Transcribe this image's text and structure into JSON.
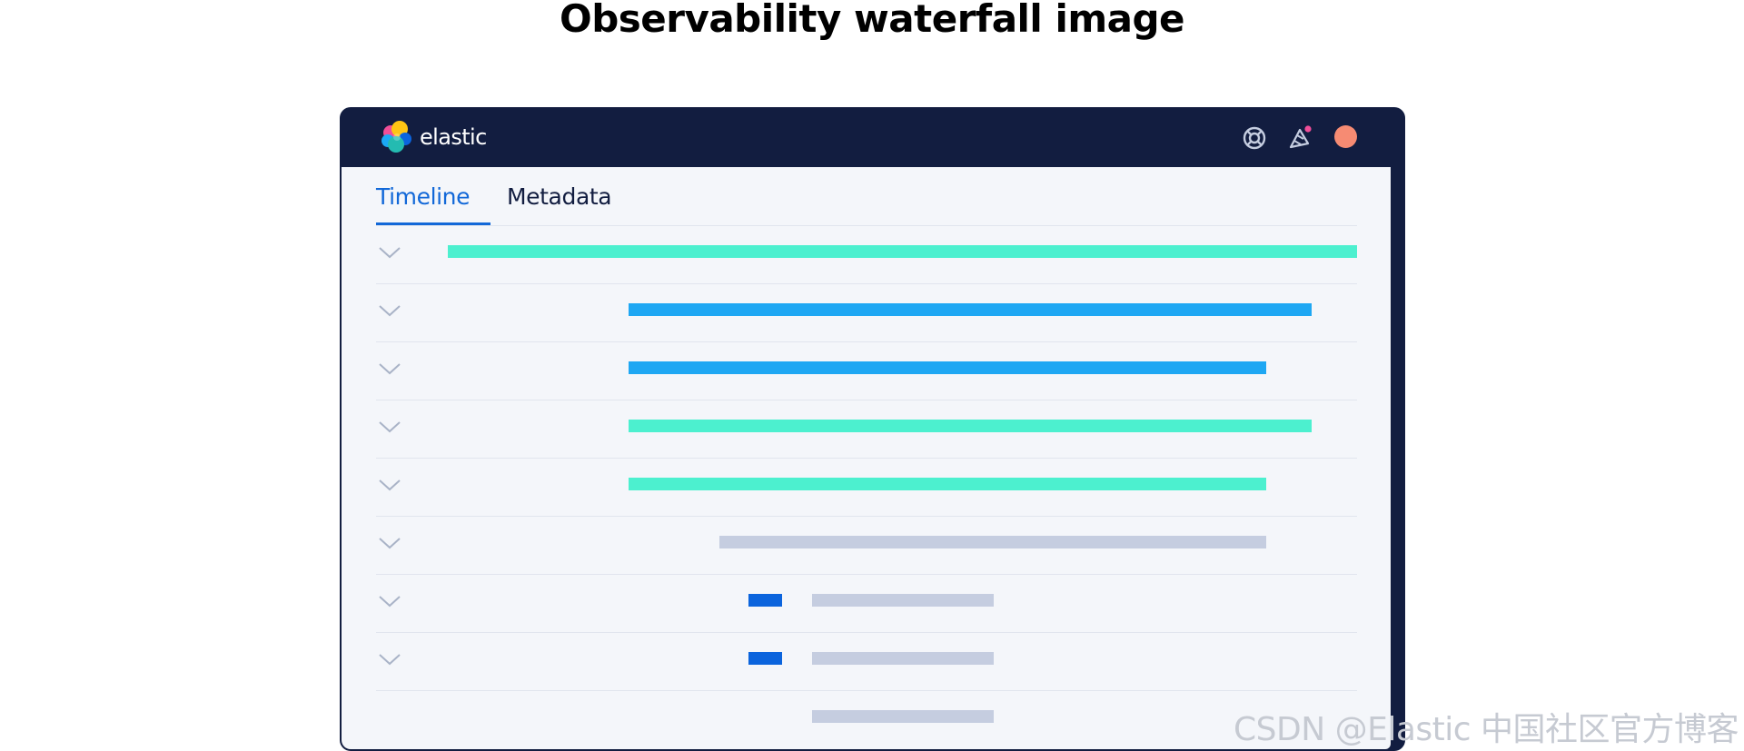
{
  "page": {
    "title": "Observability waterfall image"
  },
  "app": {
    "logo_text": "elastic",
    "logo_icon": "elastic-logo-icon",
    "header_icons": [
      "help-lifebuoy-icon",
      "news-feed-megaphone-icon",
      "user-avatar"
    ]
  },
  "tabs": [
    {
      "label": "Timeline",
      "selected": true
    },
    {
      "label": "Metadata",
      "selected": false
    }
  ],
  "timeline": {
    "rows": [
      {
        "expand_icon": "chevron-down-icon",
        "spans": [
          {
            "start": 0.073,
            "end": 1.0,
            "color": "#4cf0cf"
          }
        ]
      },
      {
        "expand_icon": "chevron-down-icon",
        "spans": [
          {
            "start": 0.257,
            "end": 0.954,
            "color": "#1ea7f3"
          }
        ]
      },
      {
        "expand_icon": "chevron-down-icon",
        "spans": [
          {
            "start": 0.257,
            "end": 0.907,
            "color": "#1ea7f3"
          }
        ]
      },
      {
        "expand_icon": "chevron-down-icon",
        "spans": [
          {
            "start": 0.257,
            "end": 0.954,
            "color": "#4cf0cf"
          }
        ]
      },
      {
        "expand_icon": "chevron-down-icon",
        "spans": [
          {
            "start": 0.257,
            "end": 0.907,
            "color": "#4cf0cf"
          }
        ]
      },
      {
        "expand_icon": "chevron-down-icon",
        "spans": [
          {
            "start": 0.35,
            "end": 0.907,
            "color": "#c5cde0"
          }
        ]
      },
      {
        "expand_icon": "chevron-down-icon",
        "spans": [
          {
            "start": 0.38,
            "end": 0.414,
            "color": "#0b64dd"
          },
          {
            "start": 0.444,
            "end": 0.63,
            "color": "#c5cde0"
          }
        ]
      },
      {
        "expand_icon": "chevron-down-icon",
        "spans": [
          {
            "start": 0.38,
            "end": 0.414,
            "color": "#0b64dd"
          },
          {
            "start": 0.444,
            "end": 0.63,
            "color": "#c5cde0"
          }
        ]
      },
      {
        "expand_icon": null,
        "spans": [
          {
            "start": 0.444,
            "end": 0.63,
            "color": "#c5cde0"
          }
        ]
      }
    ]
  },
  "colors": {
    "header_bg": "#121d40",
    "panel_bg": "#f4f6fa",
    "accent": "#1268d8",
    "avatar": "#f68b73"
  },
  "watermark": "CSDN @Elastic 中国社区官方博客"
}
